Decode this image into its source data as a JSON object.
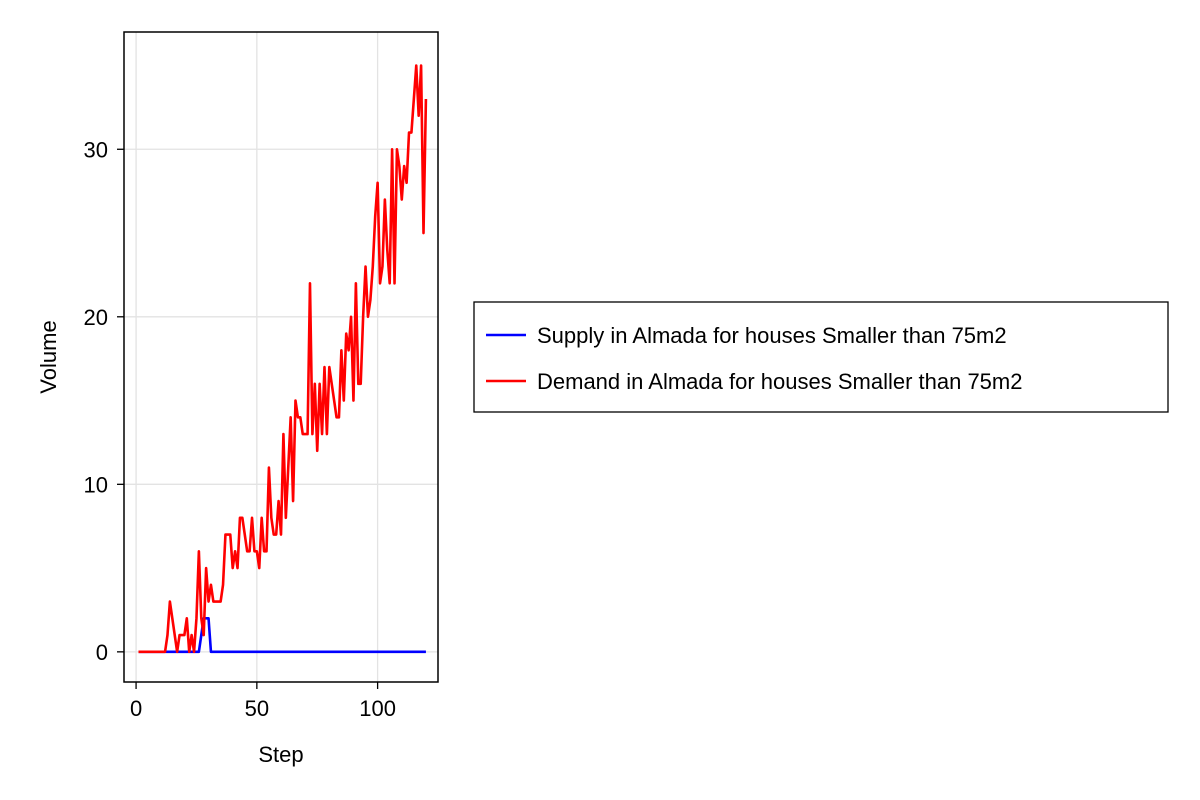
{
  "chart_data": {
    "type": "line",
    "xlabel": "Step",
    "ylabel": "Volume",
    "xlim": [
      -5,
      125
    ],
    "ylim": [
      -1.8,
      37
    ],
    "xticks": [
      0,
      50,
      100
    ],
    "yticks": [
      0,
      10,
      20,
      30
    ],
    "grid": true,
    "legend_position": "right",
    "series": [
      {
        "name": "Supply in Almada for houses Smaller than 75m2",
        "color": "#0000ff",
        "x": [
          1,
          26,
          28,
          30,
          31,
          120
        ],
        "y": [
          0,
          0,
          2,
          2,
          0,
          0
        ]
      },
      {
        "name": "Demand in Almada for houses Smaller than 75m2",
        "color": "#ff0000",
        "x": [
          1,
          2,
          3,
          4,
          5,
          6,
          7,
          8,
          9,
          10,
          11,
          12,
          13,
          14,
          15,
          16,
          17,
          18,
          19,
          20,
          21,
          22,
          23,
          24,
          25,
          26,
          27,
          28,
          29,
          30,
          31,
          32,
          33,
          34,
          35,
          36,
          37,
          38,
          39,
          40,
          41,
          42,
          43,
          44,
          45,
          46,
          47,
          48,
          49,
          50,
          51,
          52,
          53,
          54,
          55,
          56,
          57,
          58,
          59,
          60,
          61,
          62,
          63,
          64,
          65,
          66,
          67,
          68,
          69,
          70,
          71,
          72,
          73,
          74,
          75,
          76,
          77,
          78,
          79,
          80,
          81,
          82,
          83,
          84,
          85,
          86,
          87,
          88,
          89,
          90,
          91,
          92,
          93,
          94,
          95,
          96,
          97,
          98,
          99,
          100,
          101,
          102,
          103,
          104,
          105,
          106,
          107,
          108,
          109,
          110,
          111,
          112,
          113,
          114,
          115,
          116,
          117,
          118,
          119,
          120
        ],
        "y": [
          0,
          0,
          0,
          0,
          0,
          0,
          0,
          0,
          0,
          0,
          0,
          0,
          1,
          3,
          2,
          1,
          0,
          1,
          1,
          1,
          2,
          0,
          1,
          0,
          2,
          6,
          2,
          1,
          5,
          3,
          4,
          3,
          3,
          3,
          3,
          4,
          7,
          7,
          7,
          5,
          6,
          5,
          8,
          8,
          7,
          6,
          6,
          8,
          6,
          6,
          5,
          8,
          6,
          6,
          11,
          8,
          7,
          7,
          9,
          7,
          13,
          8,
          11,
          14,
          9,
          15,
          14,
          14,
          13,
          13,
          13,
          22,
          13,
          16,
          12,
          16,
          13,
          17,
          13,
          17,
          16,
          15,
          14,
          14,
          18,
          15,
          19,
          18,
          20,
          15,
          22,
          16,
          16,
          20,
          23,
          20,
          21,
          23,
          26,
          28,
          22,
          23,
          27,
          24,
          22,
          30,
          22,
          30,
          29,
          27,
          29,
          28,
          31,
          31,
          33,
          35,
          32,
          35,
          25,
          33
        ]
      }
    ]
  }
}
